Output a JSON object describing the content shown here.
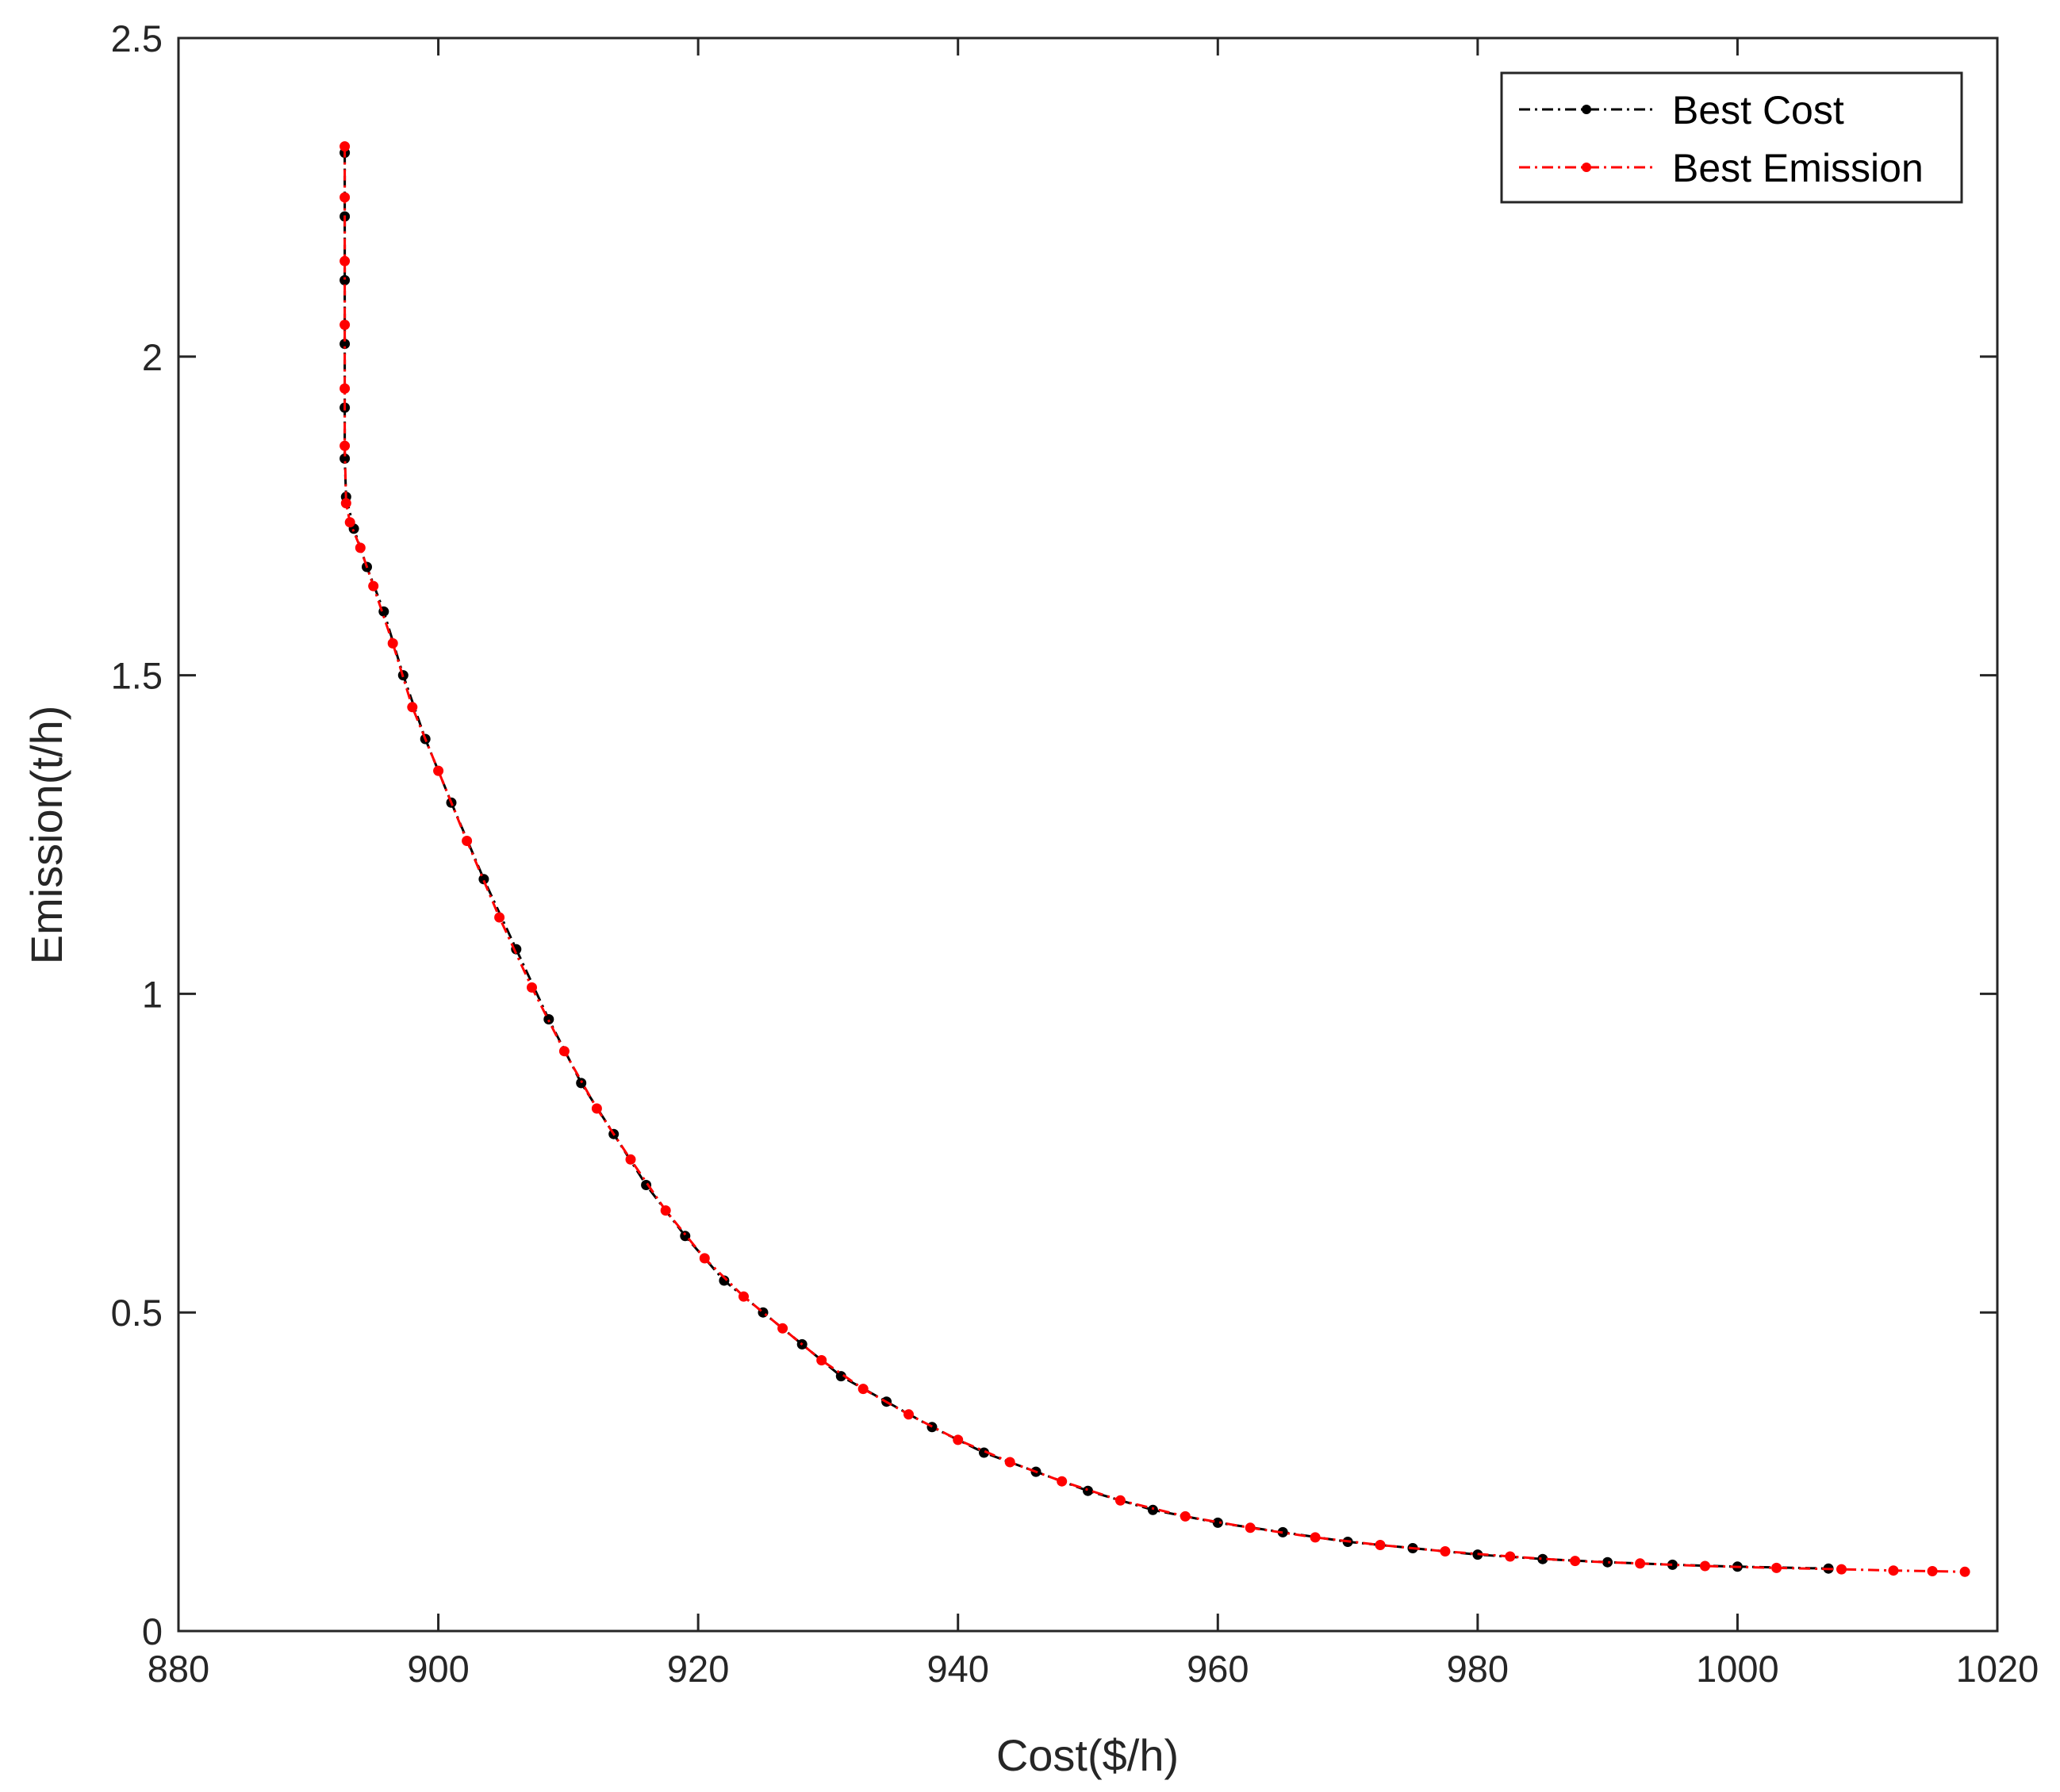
{
  "chart_data": {
    "type": "line",
    "title": "",
    "xlabel": "Cost($/h)",
    "ylabel": "Emission(t/h)",
    "xlim": [
      880,
      1020
    ],
    "ylim": [
      0,
      2.5
    ],
    "x_ticks": [
      880,
      900,
      920,
      940,
      960,
      980,
      1000,
      1020
    ],
    "x_tick_labels": [
      "880",
      "900",
      "920",
      "940",
      "960",
      "980",
      "1000",
      "1020"
    ],
    "y_ticks": [
      0,
      0.5,
      1,
      1.5,
      2,
      2.5
    ],
    "y_tick_labels": [
      "0",
      "0.5",
      "1",
      "1.5",
      "2",
      "2.5"
    ],
    "grid": false,
    "legend_position": "top-right",
    "series": [
      {
        "name": "Best Cost",
        "color": "#000000",
        "line_style": "dash-dot",
        "marker": "dot",
        "points": [
          [
            892.8,
            2.32
          ],
          [
            892.8,
            2.22
          ],
          [
            892.8,
            2.12
          ],
          [
            892.8,
            2.02
          ],
          [
            892.8,
            1.92
          ],
          [
            892.8,
            1.84
          ],
          [
            892.9,
            1.78
          ],
          [
            893.5,
            1.73
          ],
          [
            894.5,
            1.67
          ],
          [
            895.8,
            1.6
          ],
          [
            897.3,
            1.5
          ],
          [
            899.0,
            1.4
          ],
          [
            901.0,
            1.3
          ],
          [
            903.5,
            1.18
          ],
          [
            906.0,
            1.07
          ],
          [
            908.5,
            0.96
          ],
          [
            911.0,
            0.86
          ],
          [
            913.5,
            0.78
          ],
          [
            916.0,
            0.7
          ],
          [
            919.0,
            0.62
          ],
          [
            922.0,
            0.55
          ],
          [
            925.0,
            0.5
          ],
          [
            928.0,
            0.45
          ],
          [
            931.0,
            0.4
          ],
          [
            934.5,
            0.36
          ],
          [
            938.0,
            0.32
          ],
          [
            942.0,
            0.28
          ],
          [
            946.0,
            0.25
          ],
          [
            950.0,
            0.22
          ],
          [
            955.0,
            0.19
          ],
          [
            960.0,
            0.17
          ],
          [
            965.0,
            0.155
          ],
          [
            970.0,
            0.14
          ],
          [
            975.0,
            0.13
          ],
          [
            980.0,
            0.12
          ],
          [
            985.0,
            0.113
          ],
          [
            990.0,
            0.108
          ],
          [
            995.0,
            0.104
          ],
          [
            1000.0,
            0.101
          ],
          [
            1007.0,
            0.098
          ]
        ]
      },
      {
        "name": "Best Emission",
        "color": "#ff0000",
        "line_style": "dash-dot",
        "marker": "dot",
        "points": [
          [
            892.8,
            2.33
          ],
          [
            892.8,
            2.25
          ],
          [
            892.8,
            2.15
          ],
          [
            892.8,
            2.05
          ],
          [
            892.8,
            1.95
          ],
          [
            892.8,
            1.86
          ],
          [
            892.9,
            1.77
          ],
          [
            893.2,
            1.74
          ],
          [
            894.0,
            1.7
          ],
          [
            895.0,
            1.64
          ],
          [
            896.5,
            1.55
          ],
          [
            898.0,
            1.45
          ],
          [
            900.0,
            1.35
          ],
          [
            902.2,
            1.24
          ],
          [
            904.7,
            1.12
          ],
          [
            907.2,
            1.01
          ],
          [
            909.7,
            0.91
          ],
          [
            912.2,
            0.82
          ],
          [
            914.8,
            0.74
          ],
          [
            917.5,
            0.66
          ],
          [
            920.5,
            0.585
          ],
          [
            923.5,
            0.525
          ],
          [
            926.5,
            0.475
          ],
          [
            929.5,
            0.425
          ],
          [
            932.7,
            0.38
          ],
          [
            936.2,
            0.34
          ],
          [
            940.0,
            0.3
          ],
          [
            944.0,
            0.265
          ],
          [
            948.0,
            0.235
          ],
          [
            952.5,
            0.205
          ],
          [
            957.5,
            0.18
          ],
          [
            962.5,
            0.162
          ],
          [
            967.5,
            0.147
          ],
          [
            972.5,
            0.135
          ],
          [
            977.5,
            0.125
          ],
          [
            982.5,
            0.117
          ],
          [
            987.5,
            0.11
          ],
          [
            992.5,
            0.106
          ],
          [
            997.5,
            0.102
          ],
          [
            1003.0,
            0.099
          ],
          [
            1008.0,
            0.097
          ],
          [
            1012.0,
            0.095
          ],
          [
            1015.0,
            0.094
          ],
          [
            1017.5,
            0.093
          ]
        ]
      }
    ]
  }
}
